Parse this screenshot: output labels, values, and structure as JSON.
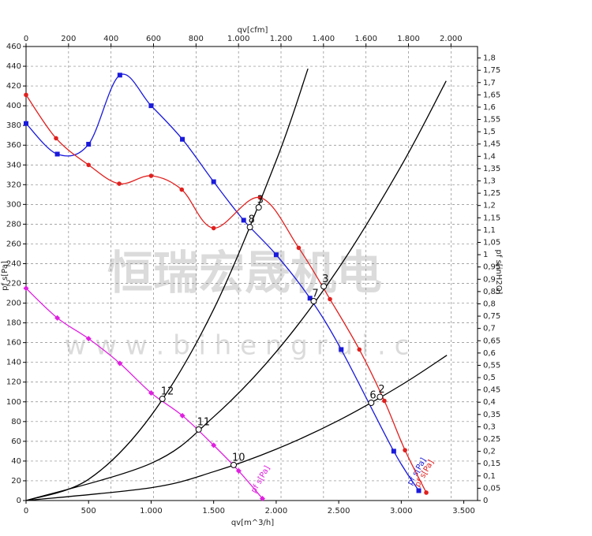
{
  "chart_data": {
    "type": "line",
    "x_label": "qv[m^3/h]",
    "x2_label": "qv[cfm]",
    "y_label": "pf s[Pa]",
    "y2_label": "pf s[inH2O]",
    "xlim": [
      0,
      3610
    ],
    "x2lim": [
      0,
      2125
    ],
    "ylim": [
      0,
      460
    ],
    "y2lim": [
      0,
      1.8467
    ],
    "xticks": [
      0,
      500,
      {
        "value": 1000,
        "label": "1.000"
      },
      {
        "value": 1500,
        "label": "1.500"
      },
      {
        "value": 2000,
        "label": "2.000"
      },
      {
        "value": 2500,
        "label": "2.500"
      },
      {
        "value": 3000,
        "label": "3.000"
      },
      {
        "value": 3500,
        "label": "3.500"
      }
    ],
    "x2ticks": [
      0,
      200,
      400,
      600,
      800,
      {
        "value": 1000,
        "label": "1.000"
      },
      {
        "value": 1200,
        "label": "1.200"
      },
      {
        "value": 1400,
        "label": "1.400"
      },
      {
        "value": 1600,
        "label": "1.600"
      },
      {
        "value": 1800,
        "label": "1.800"
      },
      {
        "value": 2000,
        "label": "2.000"
      }
    ],
    "yticks": [
      0,
      20,
      40,
      60,
      80,
      100,
      120,
      140,
      160,
      180,
      200,
      220,
      240,
      260,
      280,
      300,
      320,
      340,
      360,
      380,
      400,
      420,
      440,
      460
    ],
    "y2ticks": [
      0,
      {
        "value": 0.05,
        "label": "0,05"
      },
      {
        "value": 0.1,
        "label": "0,1"
      },
      {
        "value": 0.15,
        "label": "0,15"
      },
      {
        "value": 0.2,
        "label": "0,2"
      },
      {
        "value": 0.25,
        "label": "0,25"
      },
      {
        "value": 0.3,
        "label": "0,3"
      },
      {
        "value": 0.35,
        "label": "0,35"
      },
      {
        "value": 0.4,
        "label": "0,4"
      },
      {
        "value": 0.45,
        "label": "0,45"
      },
      {
        "value": 0.5,
        "label": "0,5"
      },
      {
        "value": 0.55,
        "label": "0,55"
      },
      {
        "value": 0.6,
        "label": "0,6"
      },
      {
        "value": 0.65,
        "label": "0,65"
      },
      {
        "value": 0.7,
        "label": "0,7"
      },
      {
        "value": 0.75,
        "label": "0,75"
      },
      {
        "value": 0.8,
        "label": "0,8"
      },
      {
        "value": 0.85,
        "label": "0,85"
      },
      {
        "value": 0.9,
        "label": "0,9"
      },
      {
        "value": 0.95,
        "label": "0,95"
      },
      1,
      {
        "value": 1.05,
        "label": "1,05"
      },
      {
        "value": 1.1,
        "label": "1,1"
      },
      {
        "value": 1.15,
        "label": "1,15"
      },
      {
        "value": 1.2,
        "label": "1,2"
      },
      {
        "value": 1.25,
        "label": "1,25"
      },
      {
        "value": 1.3,
        "label": "1,3"
      },
      {
        "value": 1.35,
        "label": "1,35"
      },
      {
        "value": 1.4,
        "label": "1,4"
      },
      {
        "value": 1.45,
        "label": "1,45"
      },
      {
        "value": 1.5,
        "label": "1,5"
      },
      {
        "value": 1.55,
        "label": "1,55"
      },
      {
        "value": 1.6,
        "label": "1,6"
      },
      {
        "value": 1.65,
        "label": "1,65"
      },
      {
        "value": 1.7,
        "label": "1,7"
      },
      {
        "value": 1.75,
        "label": "1,75"
      },
      {
        "value": 1.8,
        "label": "1,8"
      }
    ],
    "grid": true,
    "series": [
      {
        "name": "pf s[Pa]",
        "color": "#1a1adc",
        "marker": "square",
        "x": [
          0,
          250,
          500,
          750,
          1000,
          1250,
          1500,
          1740,
          2000,
          2270,
          2520,
          2940,
          3140
        ],
        "values": [
          382,
          351,
          361,
          431,
          400,
          366,
          323,
          284,
          249,
          205,
          153,
          50,
          10
        ]
      },
      {
        "name": "pf s[Pa]",
        "color": "#e0201e",
        "marker": "circle",
        "x": [
          0,
          240,
          500,
          745,
          1000,
          1245,
          1500,
          1870,
          2180,
          2430,
          2665,
          2865,
          3030,
          3200
        ],
        "values": [
          411,
          367,
          340,
          321,
          329,
          315,
          276,
          307,
          256,
          204,
          153,
          101,
          51,
          8
        ]
      },
      {
        "name": "pf s[Pa]",
        "color": "#e020e0",
        "marker": "diamond",
        "x": [
          0,
          250,
          500,
          750,
          1000,
          1250,
          1500,
          1700,
          1890
        ],
        "values": [
          215,
          185,
          164,
          139,
          109,
          86,
          56,
          30,
          2
        ]
      },
      {
        "color": "#000000",
        "marker": "none",
        "x": [
          0,
          500,
          1000,
          1500,
          2000,
          2254
        ],
        "values": [
          0,
          21.5,
          86.1,
          193.7,
          344.4,
          437.5
        ]
      },
      {
        "color": "#000000",
        "marker": "none",
        "x": [
          0,
          1000,
          1500,
          2000,
          2500,
          3000,
          3359
        ],
        "values": [
          0,
          37.7,
          84.8,
          150.7,
          235.5,
          339.1,
          425.1
        ]
      },
      {
        "color": "#000000",
        "marker": "none",
        "x": [
          0,
          1000,
          1500,
          2000,
          2500,
          3000,
          3365
        ],
        "values": [
          0,
          13,
          29.2,
          52,
          81.2,
          117,
          147.2
        ]
      }
    ],
    "points": [
      {
        "label": "3",
        "x": 1860,
        "y": 297
      },
      {
        "label": "8",
        "x": 1790,
        "y": 277
      },
      {
        "label": "3",
        "x": 2380,
        "y": 217
      },
      {
        "label": "7",
        "x": 2300,
        "y": 202
      },
      {
        "label": "2",
        "x": 2830,
        "y": 105
      },
      {
        "label": "6",
        "x": 2760,
        "y": 99
      },
      {
        "label": "12",
        "x": 1090,
        "y": 103
      },
      {
        "label": "11",
        "x": 1380,
        "y": 72
      },
      {
        "label": "10",
        "x": 1660,
        "y": 36
      }
    ],
    "watermark": [
      "恒瑞宏晟机电",
      "w w w . b i h e n g r u i . c"
    ]
  }
}
